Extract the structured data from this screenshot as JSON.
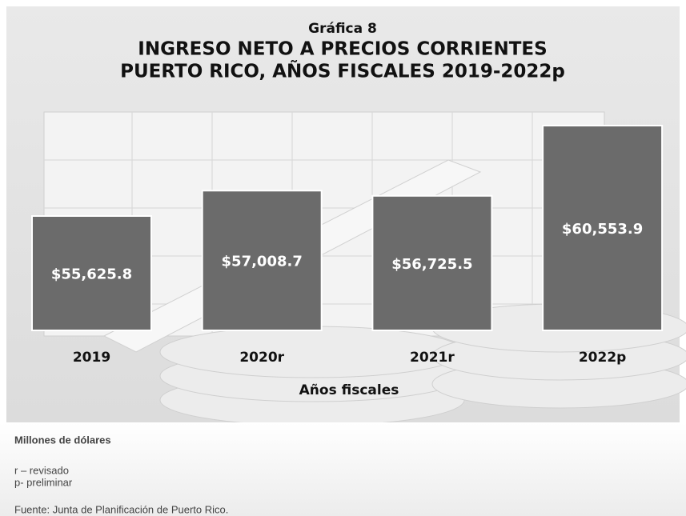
{
  "chart_data": {
    "type": "bar",
    "label": "Gráfica 8",
    "title": [
      "INGRESO NETO A PRECIOS CORRIENTES",
      "PUERTO RICO, AÑOS FISCALES 2019-2022p"
    ],
    "categories": [
      "2019",
      "2020r",
      "2021r",
      "2022p"
    ],
    "values": [
      55625.8,
      57008.7,
      56725.5,
      60553.9
    ],
    "value_labels": [
      "$55,625.8",
      "$57,008.7",
      "$56,725.5",
      "$60,553.9"
    ],
    "color": "#6b6b6b",
    "x_label": "Años fiscales",
    "unit_note": "Millones de dólares",
    "notes": [
      "r – revisado",
      "p- preliminar"
    ],
    "source": "Fuente: Junta de Planificación de Puerto Rico."
  }
}
